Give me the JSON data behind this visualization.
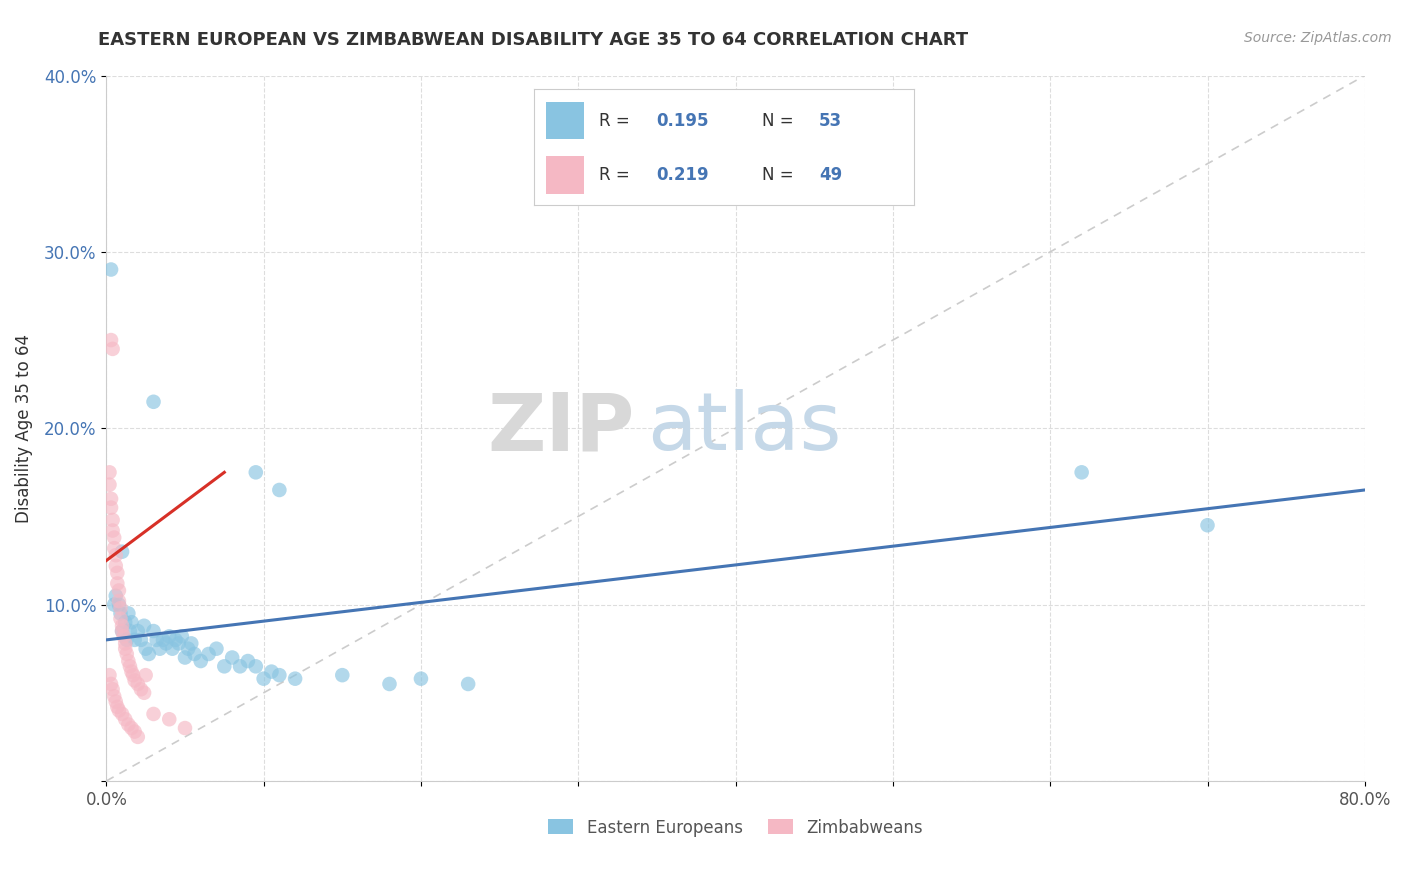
{
  "title": "EASTERN EUROPEAN VS ZIMBABWEAN DISABILITY AGE 35 TO 64 CORRELATION CHART",
  "source": "Source: ZipAtlas.com",
  "ylabel": "Disability Age 35 to 64",
  "xlim": [
    0,
    0.8
  ],
  "ylim": [
    0,
    0.4
  ],
  "xtick_vals": [
    0.0,
    0.1,
    0.2,
    0.3,
    0.4,
    0.5,
    0.6,
    0.7,
    0.8
  ],
  "xtick_labels": [
    "0.0%",
    "",
    "",
    "",
    "",
    "",
    "",
    "",
    "80.0%"
  ],
  "ytick_vals": [
    0.0,
    0.1,
    0.2,
    0.3,
    0.4
  ],
  "ytick_labels": [
    "",
    "10.0%",
    "20.0%",
    "30.0%",
    "40.0%"
  ],
  "legend_labels": [
    "Eastern Europeans",
    "Zimbabweans"
  ],
  "R_blue": "0.195",
  "N_blue": "53",
  "R_pink": "0.219",
  "N_pink": "49",
  "blue_color": "#89c4e1",
  "pink_color": "#f5b8c4",
  "blue_line_color": "#4575b4",
  "pink_line_color": "#d73027",
  "diag_color": "#cccccc",
  "ytick_color": "#4575b4",
  "blue_line": [
    [
      0.0,
      0.08
    ],
    [
      0.8,
      0.165
    ]
  ],
  "pink_line": [
    [
      0.0,
      0.125
    ],
    [
      0.075,
      0.175
    ]
  ],
  "diag_line": [
    [
      0.0,
      0.0
    ],
    [
      0.8,
      0.4
    ]
  ],
  "blue_pts": [
    [
      0.003,
      0.29
    ],
    [
      0.005,
      0.1
    ],
    [
      0.006,
      0.105
    ],
    [
      0.008,
      0.1
    ],
    [
      0.009,
      0.095
    ],
    [
      0.01,
      0.13
    ],
    [
      0.01,
      0.085
    ],
    [
      0.012,
      0.09
    ],
    [
      0.013,
      0.08
    ],
    [
      0.014,
      0.095
    ],
    [
      0.015,
      0.085
    ],
    [
      0.016,
      0.09
    ],
    [
      0.018,
      0.08
    ],
    [
      0.02,
      0.085
    ],
    [
      0.022,
      0.08
    ],
    [
      0.024,
      0.088
    ],
    [
      0.025,
      0.075
    ],
    [
      0.027,
      0.072
    ],
    [
      0.03,
      0.085
    ],
    [
      0.032,
      0.08
    ],
    [
      0.034,
      0.075
    ],
    [
      0.036,
      0.08
    ],
    [
      0.038,
      0.078
    ],
    [
      0.04,
      0.082
    ],
    [
      0.042,
      0.075
    ],
    [
      0.044,
      0.08
    ],
    [
      0.046,
      0.078
    ],
    [
      0.048,
      0.082
    ],
    [
      0.05,
      0.07
    ],
    [
      0.052,
      0.075
    ],
    [
      0.054,
      0.078
    ],
    [
      0.056,
      0.072
    ],
    [
      0.06,
      0.068
    ],
    [
      0.065,
      0.072
    ],
    [
      0.07,
      0.075
    ],
    [
      0.075,
      0.065
    ],
    [
      0.08,
      0.07
    ],
    [
      0.085,
      0.065
    ],
    [
      0.09,
      0.068
    ],
    [
      0.095,
      0.065
    ],
    [
      0.1,
      0.058
    ],
    [
      0.105,
      0.062
    ],
    [
      0.11,
      0.06
    ],
    [
      0.12,
      0.058
    ],
    [
      0.03,
      0.215
    ],
    [
      0.095,
      0.175
    ],
    [
      0.11,
      0.165
    ],
    [
      0.15,
      0.06
    ],
    [
      0.18,
      0.055
    ],
    [
      0.2,
      0.058
    ],
    [
      0.23,
      0.055
    ],
    [
      0.62,
      0.175
    ],
    [
      0.7,
      0.145
    ]
  ],
  "pink_pts": [
    [
      0.002,
      0.175
    ],
    [
      0.002,
      0.168
    ],
    [
      0.003,
      0.16
    ],
    [
      0.003,
      0.155
    ],
    [
      0.004,
      0.148
    ],
    [
      0.004,
      0.142
    ],
    [
      0.005,
      0.138
    ],
    [
      0.005,
      0.132
    ],
    [
      0.006,
      0.128
    ],
    [
      0.006,
      0.122
    ],
    [
      0.007,
      0.118
    ],
    [
      0.007,
      0.112
    ],
    [
      0.008,
      0.108
    ],
    [
      0.008,
      0.102
    ],
    [
      0.009,
      0.098
    ],
    [
      0.009,
      0.092
    ],
    [
      0.01,
      0.088
    ],
    [
      0.01,
      0.085
    ],
    [
      0.011,
      0.082
    ],
    [
      0.012,
      0.078
    ],
    [
      0.012,
      0.075
    ],
    [
      0.013,
      0.072
    ],
    [
      0.014,
      0.068
    ],
    [
      0.015,
      0.065
    ],
    [
      0.016,
      0.062
    ],
    [
      0.017,
      0.06
    ],
    [
      0.018,
      0.057
    ],
    [
      0.02,
      0.055
    ],
    [
      0.022,
      0.052
    ],
    [
      0.024,
      0.05
    ],
    [
      0.003,
      0.25
    ],
    [
      0.004,
      0.245
    ],
    [
      0.002,
      0.06
    ],
    [
      0.003,
      0.055
    ],
    [
      0.004,
      0.052
    ],
    [
      0.005,
      0.048
    ],
    [
      0.006,
      0.045
    ],
    [
      0.007,
      0.042
    ],
    [
      0.008,
      0.04
    ],
    [
      0.01,
      0.038
    ],
    [
      0.012,
      0.035
    ],
    [
      0.014,
      0.032
    ],
    [
      0.016,
      0.03
    ],
    [
      0.018,
      0.028
    ],
    [
      0.02,
      0.025
    ],
    [
      0.025,
      0.06
    ],
    [
      0.03,
      0.038
    ],
    [
      0.04,
      0.035
    ],
    [
      0.05,
      0.03
    ]
  ]
}
